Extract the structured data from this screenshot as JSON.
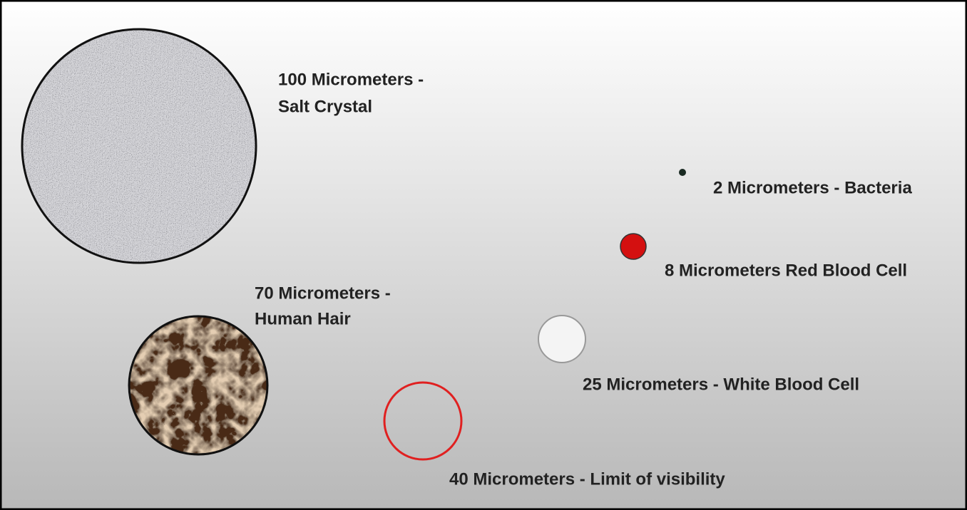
{
  "items": [
    {
      "lines": [
        "100 Micrometers -",
        "Salt Crystal"
      ]
    },
    {
      "lines": [
        "70 Micrometers -",
        "Human Hair"
      ]
    },
    {
      "lines": [
        "2 Micrometers - Bacteria"
      ]
    },
    {
      "lines": [
        "8 Micrometers Red Blood Cell"
      ]
    },
    {
      "lines": [
        "25 Micrometers - White Blood Cell"
      ]
    },
    {
      "lines": [
        "40 Micrometers - Limit of visibility"
      ]
    }
  ]
}
